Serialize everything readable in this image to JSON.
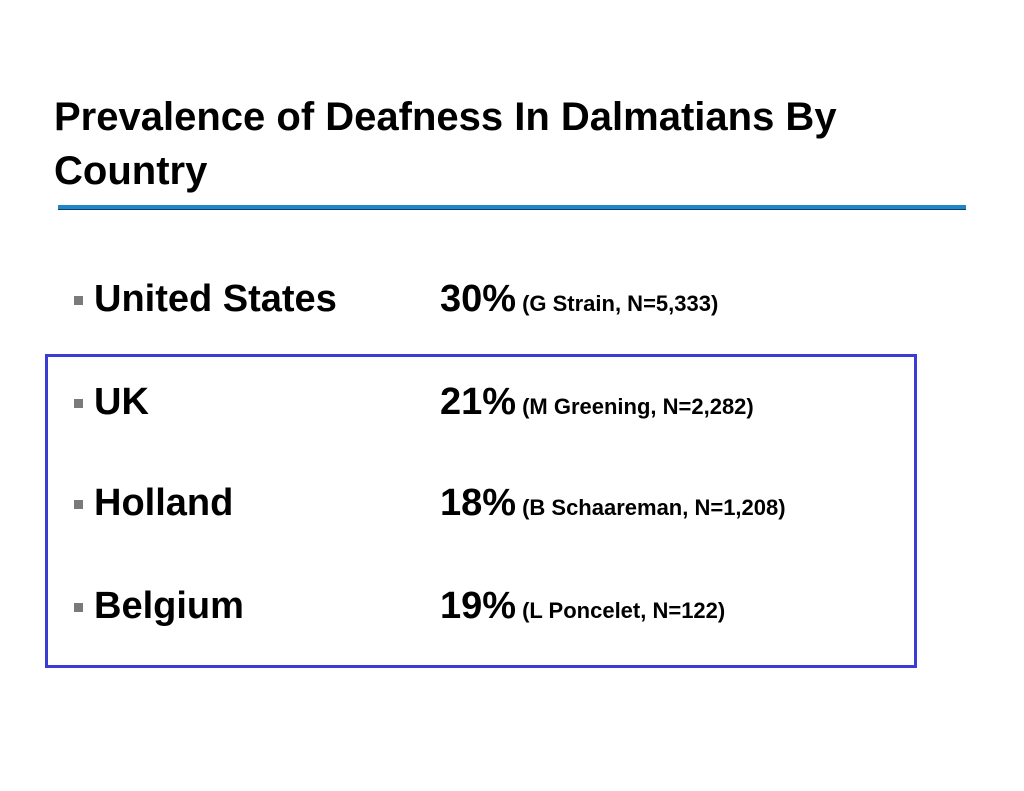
{
  "slide": {
    "title": "Prevalence of Deafness In Dalmatians By Country"
  },
  "entries": [
    {
      "country": "United States",
      "percent": "30%",
      "source": "(G Strain, N=5,333)"
    },
    {
      "country": "UK",
      "percent": "21%",
      "source": "(M Greening, N=2,282)"
    },
    {
      "country": "Holland",
      "percent": "18%",
      "source": "(B Schaareman, N=1,208)"
    },
    {
      "country": "Belgium",
      "percent": "19%",
      "source": "(L Poncelet, N=122)"
    }
  ],
  "colors": {
    "title_rule": "#1f86c8",
    "highlight_border": "#3b3bd6",
    "bullet": "#7a7a7a"
  }
}
